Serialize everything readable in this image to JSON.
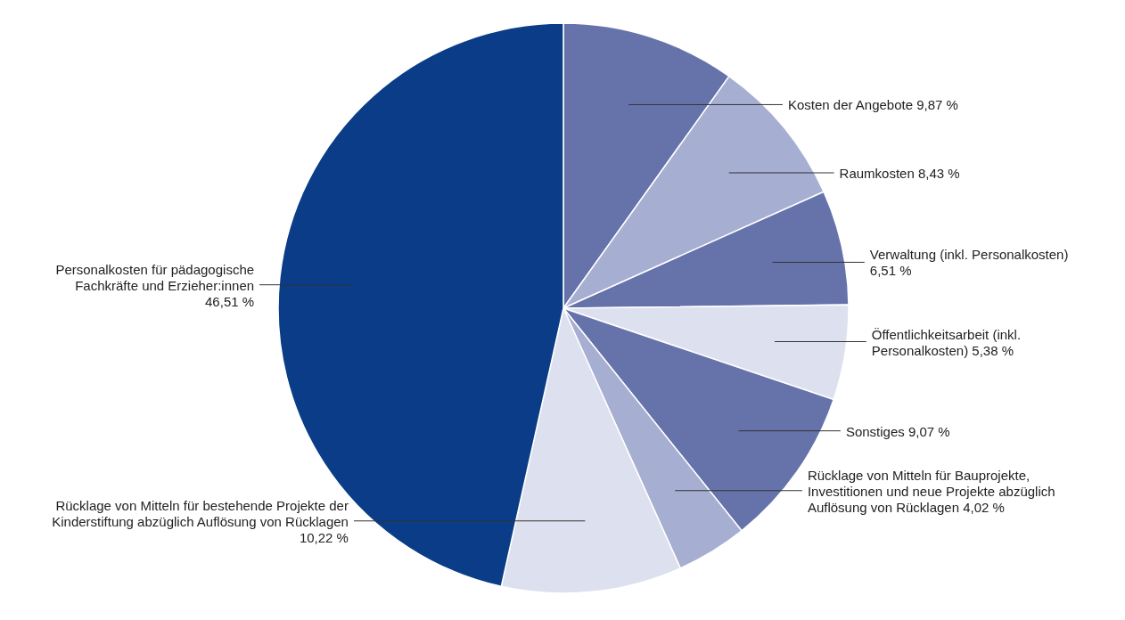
{
  "chart_data": {
    "type": "pie",
    "categories": [
      "Kosten der Angebote",
      "Raumkosten",
      "Verwaltung (inkl. Personalkosten)",
      "Öffentlichkeitsarbeit (inkl. Personalkosten)",
      "Sonstiges",
      "Rücklage von Mitteln für Bauprojekte, Investitionen und neue Projekte abzüglich Auflösung von Rücklagen",
      "Rücklage von Mitteln für bestehende Projekte der Kinderstiftung abzüglich Auflösung von Rücklagen",
      "Personalkosten für pädagogische Fachkräfte und Erzieher:innen"
    ],
    "values": [
      9.87,
      8.43,
      6.51,
      5.38,
      9.07,
      4.02,
      10.22,
      46.51
    ],
    "value_labels": [
      "9,87 %",
      "8,43 %",
      "6,51 %",
      "5,38 %",
      "9,07 %",
      "4,02 %",
      "10,22 %",
      "46,51 %"
    ],
    "colors": [
      "#6673ab",
      "#a6aed2",
      "#6673ab",
      "#dde0ee",
      "#6673ab",
      "#a6aed2",
      "#dde0ee",
      "#0a3c87"
    ]
  }
}
